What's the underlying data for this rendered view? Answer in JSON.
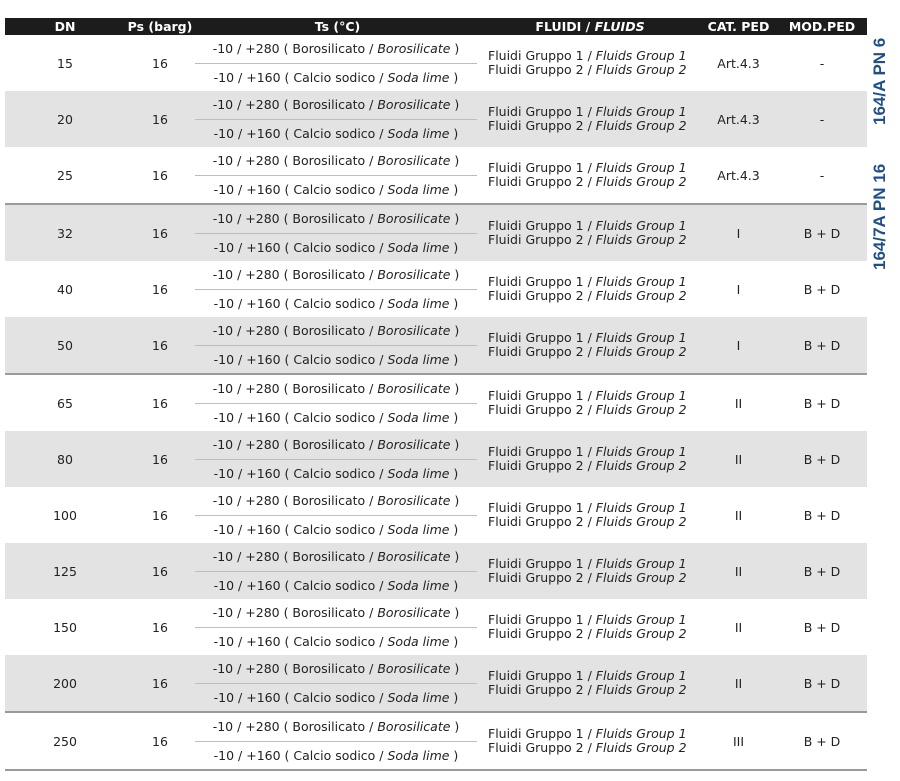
{
  "headers": {
    "dn": "DN",
    "ps": "Ps (barg)",
    "ts": "Ts (°C)",
    "fluids_it": "FLUIDI / ",
    "fluids_en": "FLUIDS",
    "cat": "CAT. PED",
    "mod": "MOD.PED"
  },
  "ts_lines": {
    "a_it": "-10 / +280 ( Borosilicato / ",
    "a_en": "Borosilicate",
    " a_end": " )",
    "b_it": "-10 / +160 ( Calcio sodico / ",
    "b_en": "Soda lime",
    "end": " )"
  },
  "fluid_lines": {
    "g1_it": "Fluidi Gruppo 1 / ",
    "g1_en": "Fluids Group 1",
    "g2_it": "Fluidi Gruppo 2 / ",
    "g2_en": "Fluids Group 2"
  },
  "rows": [
    {
      "dn": "15",
      "ps": "16",
      "cat": "Art.4.3",
      "mod": "-"
    },
    {
      "dn": "20",
      "ps": "16",
      "cat": "Art.4.3",
      "mod": "-"
    },
    {
      "dn": "25",
      "ps": "16",
      "cat": "Art.4.3",
      "mod": "-"
    },
    {
      "dn": "32",
      "ps": "16",
      "cat": "I",
      "mod": "B + D"
    },
    {
      "dn": "40",
      "ps": "16",
      "cat": "I",
      "mod": "B + D"
    },
    {
      "dn": "50",
      "ps": "16",
      "cat": "I",
      "mod": "B + D"
    },
    {
      "dn": "65",
      "ps": "16",
      "cat": "II",
      "mod": "B + D"
    },
    {
      "dn": "80",
      "ps": "16",
      "cat": "II",
      "mod": "B + D"
    },
    {
      "dn": "100",
      "ps": "16",
      "cat": "II",
      "mod": "B + D"
    },
    {
      "dn": "125",
      "ps": "16",
      "cat": "II",
      "mod": "B + D"
    },
    {
      "dn": "150",
      "ps": "16",
      "cat": "II",
      "mod": "B + D"
    },
    {
      "dn": "200",
      "ps": "16",
      "cat": "II",
      "mod": "B + D"
    },
    {
      "dn": "250",
      "ps": "16",
      "cat": "III",
      "mod": "B + D"
    }
  ],
  "side_labels": [
    "164/A PN 6",
    "164/7A PN 16"
  ],
  "colors": {
    "header_bg": "#1c1c1c",
    "alt_row": "#e3e3e3",
    "side_label": "#1f4f8a"
  }
}
